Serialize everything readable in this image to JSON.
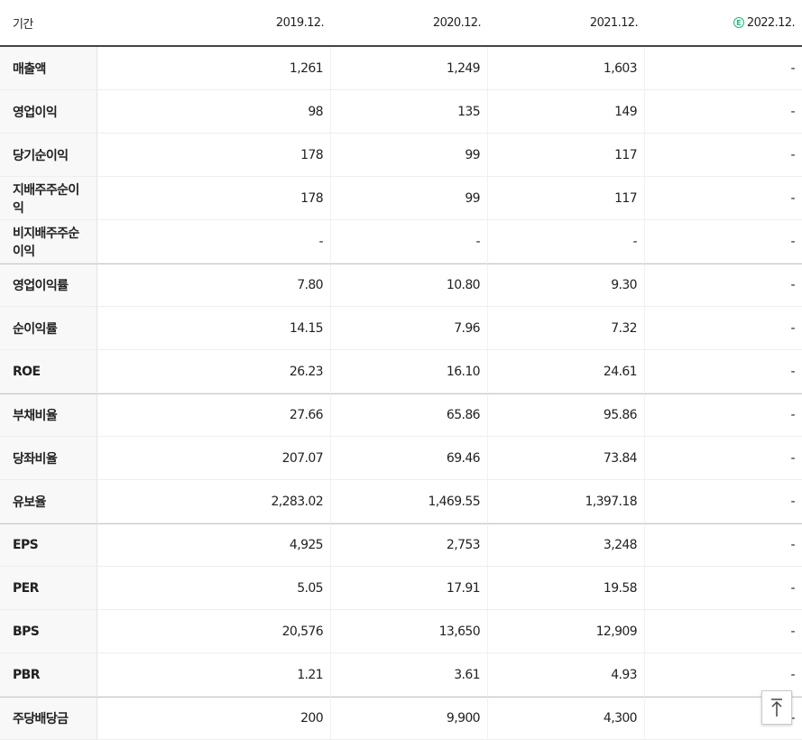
{
  "table": {
    "header": [
      "기간",
      "2019.12.",
      "2020.12.",
      "2021.12.",
      {
        "badge": "E",
        "label": "2022.12."
      }
    ],
    "groups": [
      {
        "rows": [
          [
            "매출액",
            "1,261",
            "1,249",
            "1,603",
            "-"
          ],
          [
            "영업이익",
            "98",
            "135",
            "149",
            "-"
          ],
          [
            "당기순이익",
            "178",
            "99",
            "117",
            "-"
          ],
          [
            "지배주주순이익",
            "178",
            "99",
            "117",
            "-"
          ],
          [
            "비지배주주순이익",
            "-",
            "-",
            "-",
            "-"
          ]
        ]
      },
      {
        "rows": [
          [
            "영업이익률",
            "7.80",
            "10.80",
            "9.30",
            "-"
          ],
          [
            "순이익률",
            "14.15",
            "7.96",
            "7.32",
            "-"
          ],
          [
            "ROE",
            "26.23",
            "16.10",
            "24.61",
            "-"
          ]
        ]
      },
      {
        "rows": [
          [
            "부채비율",
            "27.66",
            "65.86",
            "95.86",
            "-"
          ],
          [
            "당좌비율",
            "207.07",
            "69.46",
            "73.84",
            "-"
          ],
          [
            "유보율",
            "2,283.02",
            "1,469.55",
            "1,397.18",
            "-"
          ]
        ]
      },
      {
        "rows": [
          [
            "EPS",
            "4,925",
            "2,753",
            "3,248",
            "-"
          ],
          [
            "PER",
            "5.05",
            "17.91",
            "19.58",
            "-"
          ],
          [
            "BPS",
            "20,576",
            "13,650",
            "12,909",
            "-"
          ],
          [
            "PBR",
            "1.21",
            "3.61",
            "4.93",
            "-"
          ]
        ]
      },
      {
        "rows": [
          [
            "주당배당금",
            "200",
            "9,900",
            "4,300",
            "-"
          ]
        ]
      }
    ]
  }
}
